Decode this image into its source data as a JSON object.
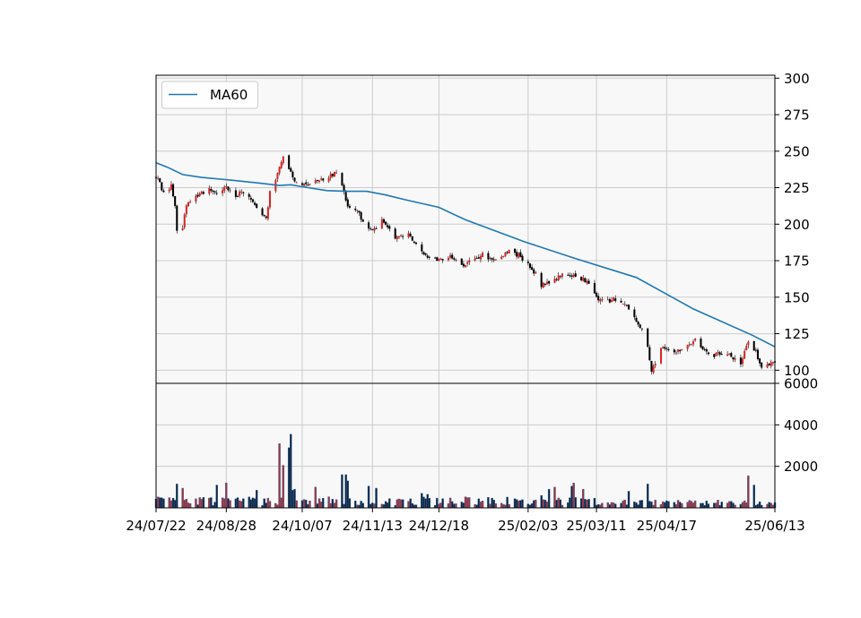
{
  "chart_data": [
    {
      "type": "candlestick",
      "panel": "price",
      "legend": {
        "position": "top-left",
        "entries": [
          {
            "label": "MA60",
            "color": "#1f77b4"
          }
        ]
      },
      "ylim": [
        91,
        302
      ],
      "yticks": [
        "100",
        "125",
        "150",
        "175",
        "200",
        "225",
        "250",
        "275",
        "300"
      ],
      "grid": true,
      "colors": {
        "up": "#d62728",
        "down": "#000000",
        "ma": "#1f77b4",
        "background": "#f8f8f8"
      },
      "x_range": [
        "2024-07-22",
        "2025-06-13"
      ],
      "anchors": [
        [
          "2024-07-22",
          233
        ],
        [
          "2024-07-26",
          222
        ],
        [
          "2024-07-30",
          226
        ],
        [
          "2024-08-01",
          213
        ],
        [
          "2024-08-02",
          195
        ],
        [
          "2024-08-05",
          198
        ],
        [
          "2024-08-07",
          214
        ],
        [
          "2024-08-12",
          220
        ],
        [
          "2024-08-16",
          222
        ],
        [
          "2024-08-20",
          224
        ],
        [
          "2024-08-23",
          222
        ],
        [
          "2024-08-28",
          225
        ],
        [
          "2024-09-02",
          219
        ],
        [
          "2024-09-05",
          222
        ],
        [
          "2024-09-10",
          218
        ],
        [
          "2024-09-13",
          212
        ],
        [
          "2024-09-18",
          203
        ],
        [
          "2024-09-20",
          222
        ],
        [
          "2024-09-23",
          232
        ],
        [
          "2024-09-27",
          248
        ],
        [
          "2024-10-02",
          232
        ],
        [
          "2024-10-07",
          226
        ],
        [
          "2024-10-11",
          229
        ],
        [
          "2024-10-16",
          230
        ],
        [
          "2024-10-21",
          232
        ],
        [
          "2024-10-25",
          236
        ],
        [
          "2024-10-28",
          225
        ],
        [
          "2024-10-31",
          212
        ],
        [
          "2024-11-05",
          210
        ],
        [
          "2024-11-08",
          202
        ],
        [
          "2024-11-13",
          196
        ],
        [
          "2024-11-18",
          202
        ],
        [
          "2024-11-21",
          198
        ],
        [
          "2024-11-26",
          190
        ],
        [
          "2024-12-02",
          195
        ],
        [
          "2024-12-06",
          185
        ],
        [
          "2024-12-12",
          178
        ],
        [
          "2024-12-18",
          175
        ],
        [
          "2024-12-24",
          179
        ],
        [
          "2024-12-30",
          172
        ],
        [
          "2025-01-06",
          175
        ],
        [
          "2025-01-10",
          180
        ],
        [
          "2025-01-14",
          176
        ],
        [
          "2025-01-20",
          178
        ],
        [
          "2025-01-24",
          182
        ],
        [
          "2025-01-30",
          178
        ],
        [
          "2025-02-03",
          172
        ],
        [
          "2025-02-07",
          166
        ],
        [
          "2025-02-10",
          158
        ],
        [
          "2025-02-14",
          160
        ],
        [
          "2025-02-20",
          165
        ],
        [
          "2025-02-25",
          166
        ],
        [
          "2025-03-03",
          163
        ],
        [
          "2025-03-06",
          161
        ],
        [
          "2025-03-11",
          149
        ],
        [
          "2025-03-17",
          147
        ],
        [
          "2025-03-21",
          149
        ],
        [
          "2025-03-27",
          143
        ],
        [
          "2025-04-01",
          133
        ],
        [
          "2025-04-03",
          130
        ],
        [
          "2025-04-07",
          117
        ],
        [
          "2025-04-09",
          99
        ],
        [
          "2025-04-14",
          115
        ],
        [
          "2025-04-17",
          116
        ],
        [
          "2025-04-22",
          113
        ],
        [
          "2025-04-28",
          117
        ],
        [
          "2025-05-02",
          120
        ],
        [
          "2025-05-06",
          114
        ],
        [
          "2025-05-12",
          110
        ],
        [
          "2025-05-16",
          112
        ],
        [
          "2025-05-22",
          109
        ],
        [
          "2025-05-26",
          104
        ],
        [
          "2025-05-30",
          119
        ],
        [
          "2025-06-03",
          112
        ],
        [
          "2025-06-06",
          103
        ],
        [
          "2025-06-13",
          105
        ]
      ],
      "series": [
        {
          "name": "MA60",
          "points": [
            [
              "2024-07-22",
              242
            ],
            [
              "2024-07-28",
              239
            ],
            [
              "2024-08-05",
              234
            ],
            [
              "2024-08-15",
              232
            ],
            [
              "2024-09-01",
              230
            ],
            [
              "2024-09-15",
              228
            ],
            [
              "2024-09-25",
              226.5
            ],
            [
              "2024-10-01",
              227
            ],
            [
              "2024-10-10",
              225
            ],
            [
              "2024-10-20",
              223
            ],
            [
              "2024-10-30",
              222.5
            ],
            [
              "2024-11-10",
              222.5
            ],
            [
              "2024-11-20",
              220
            ],
            [
              "2024-12-01",
              216.5
            ],
            [
              "2024-12-18",
              211.5
            ],
            [
              "2025-01-01",
              203
            ],
            [
              "2025-02-01",
              188
            ],
            [
              "2025-03-01",
              176
            ],
            [
              "2025-04-01",
              163.5
            ],
            [
              "2025-05-01",
              142
            ],
            [
              "2025-06-01",
              124
            ],
            [
              "2025-06-13",
              116
            ]
          ]
        }
      ]
    },
    {
      "type": "bar",
      "panel": "volume",
      "ylim": [
        0,
        6000
      ],
      "yticks": [
        "2000",
        "4000",
        "6000"
      ],
      "grid": true,
      "spikes": [
        [
          "2024-08-02",
          1150
        ],
        [
          "2024-08-05",
          950
        ],
        [
          "2024-08-23",
          1100
        ],
        [
          "2024-08-28",
          1200
        ],
        [
          "2024-09-13",
          850
        ],
        [
          "2024-09-25",
          3100
        ],
        [
          "2024-09-27",
          2050
        ],
        [
          "2024-09-30",
          2900
        ],
        [
          "2024-10-01",
          3550
        ],
        [
          "2024-10-02",
          850
        ],
        [
          "2024-10-03",
          900
        ],
        [
          "2024-10-14",
          1000
        ],
        [
          "2024-10-28",
          1600
        ],
        [
          "2024-10-30",
          1600
        ],
        [
          "2024-10-31",
          1300
        ],
        [
          "2024-11-11",
          1050
        ],
        [
          "2024-11-15",
          950
        ],
        [
          "2024-12-09",
          700
        ],
        [
          "2024-12-12",
          650
        ],
        [
          "2025-01-03",
          500
        ],
        [
          "2025-02-10",
          600
        ],
        [
          "2025-02-14",
          900
        ],
        [
          "2025-02-17",
          1000
        ],
        [
          "2025-02-26",
          1050
        ],
        [
          "2025-02-27",
          1200
        ],
        [
          "2025-03-04",
          900
        ],
        [
          "2025-03-28",
          800
        ],
        [
          "2025-04-07",
          1150
        ],
        [
          "2025-05-30",
          1550
        ],
        [
          "2025-06-02",
          1100
        ]
      ]
    }
  ],
  "xaxis": {
    "ticks": [
      {
        "date": "2024-07-22",
        "label": "24/07/22"
      },
      {
        "date": "2024-08-28",
        "label": "24/08/28"
      },
      {
        "date": "2024-10-07",
        "label": "24/10/07"
      },
      {
        "date": "2024-11-13",
        "label": "24/11/13"
      },
      {
        "date": "2024-12-18",
        "label": "24/12/18"
      },
      {
        "date": "2025-02-03",
        "label": "25/02/03"
      },
      {
        "date": "2025-03-11",
        "label": "25/03/11"
      },
      {
        "date": "2025-04-17",
        "label": "25/04/17"
      },
      {
        "date": "2025-06-13",
        "label": "25/06/13"
      }
    ]
  }
}
